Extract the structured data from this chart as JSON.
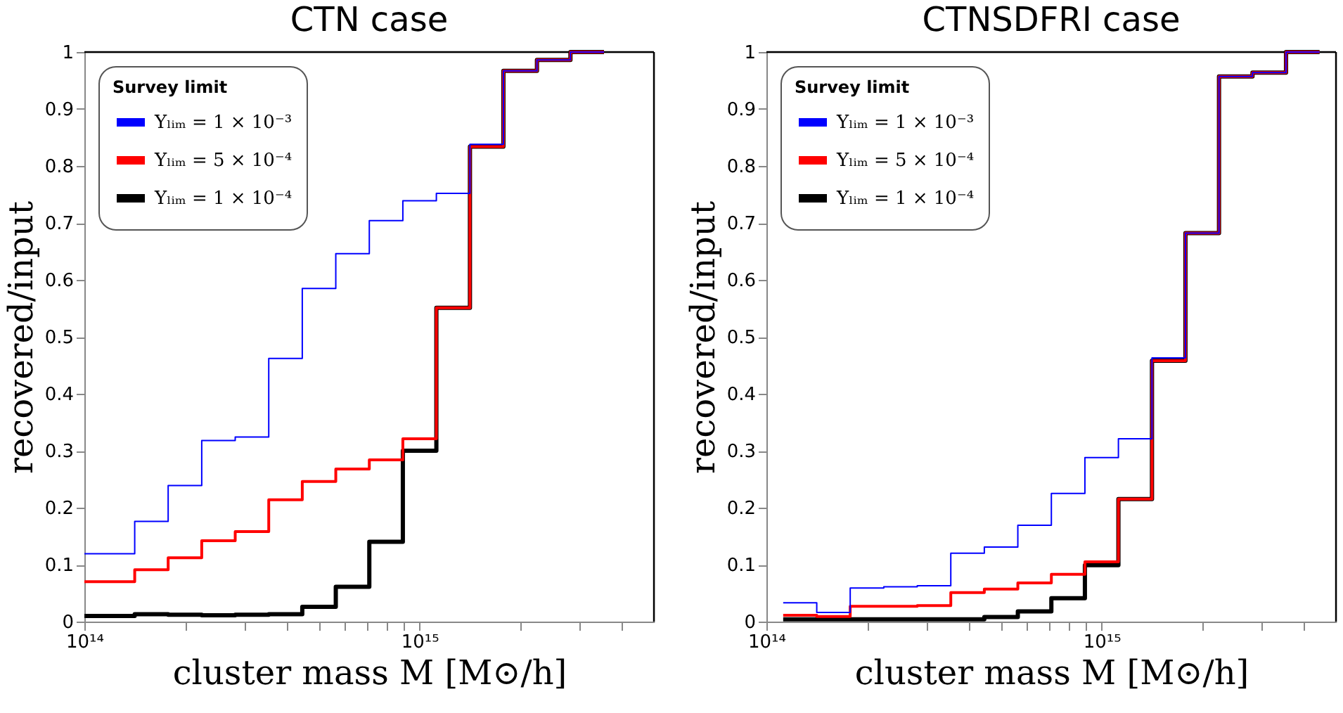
{
  "chart_data": [
    {
      "type": "step",
      "title": "CTN case",
      "xlabel": "cluster mass  M [M⊙/h]",
      "ylabel": "recovered/input",
      "legend_title": "Survey limit",
      "legend": "top left",
      "grid": false,
      "log": "x",
      "xlim": [
        100000000000000.0,
        5000000000000000.0
      ],
      "ylim": [
        0,
        1
      ],
      "xticks": [
        {
          "value": 100000000000000.0,
          "label": "10¹⁴"
        },
        {
          "value": 200000000000000.0,
          "label": null
        },
        {
          "value": 300000000000000.0,
          "label": null
        },
        {
          "value": 400000000000000.0,
          "label": null
        },
        {
          "value": 500000000000000.0,
          "label": null
        },
        {
          "value": 600000000000000.0,
          "label": null
        },
        {
          "value": 700000000000000.0,
          "label": null
        },
        {
          "value": 800000000000000.0,
          "label": null
        },
        {
          "value": 900000000000000.0,
          "label": null
        },
        {
          "value": 1000000000000000.0,
          "label": "10¹⁵"
        },
        {
          "value": 2000000000000000.0,
          "label": null
        },
        {
          "value": 3000000000000000.0,
          "label": null
        },
        {
          "value": 4000000000000000.0,
          "label": null
        }
      ],
      "yticks": [
        0,
        0.1,
        0.2,
        0.3,
        0.4,
        0.5,
        0.6,
        0.7,
        0.8,
        0.9,
        1
      ],
      "x": [
        100000000000000.0,
        141300000000000.0,
        177800000000000.0,
        223900000000000.0,
        281800000000000.0,
        354800000000000.0,
        446700000000000.0,
        562300000000000.0,
        707900000000000.0,
        891300000000000.0,
        1122000000000000.0,
        1413000000000000.0,
        1778000000000000.0,
        2239000000000000.0,
        2818000000000000.0,
        3548000000000000.0
      ],
      "series": [
        {
          "name": "Yₗᵢₘ = 1 × 10⁻³",
          "color": "#0000ff",
          "values": [
            0.119,
            0.176,
            0.239,
            0.318,
            0.324,
            0.462,
            0.585,
            0.646,
            0.704,
            0.739,
            0.752,
            0.838,
            0.967,
            0.986,
            1.0,
            1.0
          ]
        },
        {
          "name": "Yₗᵢₘ = 5 × 10⁻⁴",
          "color": "#ff0000",
          "values": [
            0.07,
            0.091,
            0.112,
            0.142,
            0.158,
            0.214,
            0.246,
            0.268,
            0.284,
            0.321,
            0.551,
            0.834,
            0.967,
            0.986,
            1.0,
            1.0
          ]
        },
        {
          "name": "Yₗᵢₘ = 1 × 10⁻⁴",
          "color": "#000000",
          "values": [
            0.01,
            0.013,
            0.012,
            0.011,
            0.012,
            0.013,
            0.026,
            0.061,
            0.14,
            0.3,
            0.551,
            0.834,
            0.967,
            0.986,
            1.0,
            1.0
          ]
        }
      ]
    },
    {
      "type": "step",
      "title": "CTNSDFRI case",
      "xlabel": "cluster mass  M [M⊙/h]",
      "ylabel": "recovered/input",
      "legend_title": "Survey limit",
      "legend": "top left",
      "grid": false,
      "log": "x",
      "xlim": [
        100000000000000.0,
        5000000000000000.0
      ],
      "ylim": [
        0,
        1
      ],
      "xticks": [
        {
          "value": 100000000000000.0,
          "label": "10¹⁴"
        },
        {
          "value": 200000000000000.0,
          "label": null
        },
        {
          "value": 300000000000000.0,
          "label": null
        },
        {
          "value": 400000000000000.0,
          "label": null
        },
        {
          "value": 500000000000000.0,
          "label": null
        },
        {
          "value": 600000000000000.0,
          "label": null
        },
        {
          "value": 700000000000000.0,
          "label": null
        },
        {
          "value": 800000000000000.0,
          "label": null
        },
        {
          "value": 900000000000000.0,
          "label": null
        },
        {
          "value": 1000000000000000.0,
          "label": "10¹⁵"
        },
        {
          "value": 2000000000000000.0,
          "label": null
        },
        {
          "value": 3000000000000000.0,
          "label": null
        },
        {
          "value": 4000000000000000.0,
          "label": null
        }
      ],
      "yticks": [
        0,
        0.1,
        0.2,
        0.3,
        0.4,
        0.5,
        0.6,
        0.7,
        0.8,
        0.9,
        1
      ],
      "x": [
        112200000000000.0,
        141300000000000.0,
        177800000000000.0,
        223900000000000.0,
        281800000000000.0,
        354800000000000.0,
        446700000000000.0,
        562300000000000.0,
        707900000000000.0,
        891300000000000.0,
        1122000000000000.0,
        1413000000000000.0,
        1778000000000000.0,
        2239000000000000.0,
        2818000000000000.0,
        3548000000000000.0,
        4467000000000000.0
      ],
      "series": [
        {
          "name": "Yₗᵢₘ = 1 × 10⁻³",
          "color": "#0000ff",
          "values": [
            0.033,
            0.016,
            0.059,
            0.061,
            0.063,
            0.12,
            0.131,
            0.169,
            0.225,
            0.288,
            0.321,
            0.463,
            0.682,
            0.957,
            0.964,
            1.0,
            1.0
          ]
        },
        {
          "name": "Yₗᵢₘ = 5 × 10⁻⁴",
          "color": "#ff0000",
          "values": [
            0.011,
            0.009,
            0.027,
            0.027,
            0.028,
            0.051,
            0.057,
            0.068,
            0.083,
            0.105,
            0.215,
            0.458,
            0.682,
            0.957,
            0.964,
            1.0,
            1.0
          ]
        },
        {
          "name": "Yₗᵢₘ = 1 × 10⁻⁴",
          "color": "#000000",
          "values": [
            0.004,
            0.004,
            0.004,
            0.004,
            0.004,
            0.004,
            0.008,
            0.018,
            0.041,
            0.099,
            0.215,
            0.458,
            0.682,
            0.957,
            0.964,
            1.0,
            1.0
          ]
        }
      ]
    }
  ]
}
